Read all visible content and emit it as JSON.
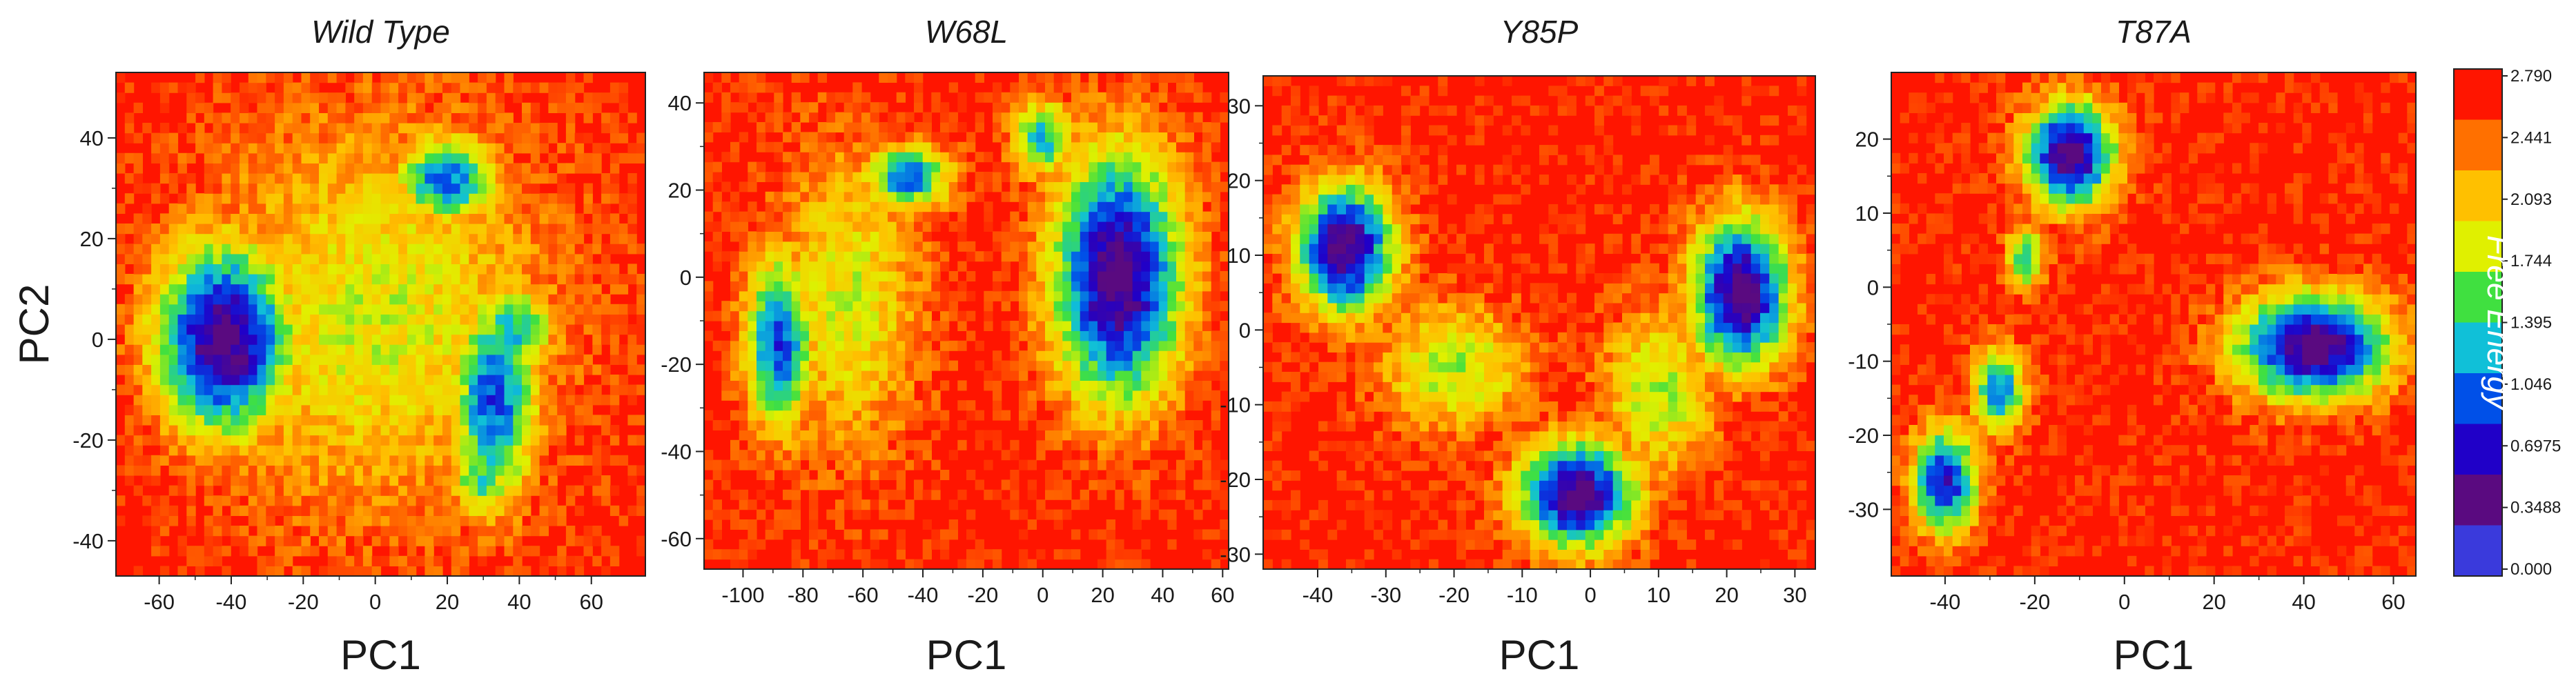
{
  "chart_data": [
    {
      "type": "heatmap",
      "title": "Wild Type",
      "xlabel": "PC1",
      "ylabel": "PC2",
      "xlim": [
        -72,
        75
      ],
      "ylim": [
        -47,
        53
      ],
      "xticks": [
        -60,
        -40,
        -20,
        0,
        20,
        40,
        60
      ],
      "yticks": [
        -40,
        -20,
        0,
        20,
        40
      ],
      "basins": [
        {
          "x": -42,
          "y": 0,
          "sx": 13,
          "sy": 13,
          "depth": 1.0
        },
        {
          "x": 33,
          "y": -12,
          "sx": 8,
          "sy": 14,
          "depth": 0.75
        },
        {
          "x": 20,
          "y": 32,
          "sx": 10,
          "sy": 6,
          "depth": 0.7
        },
        {
          "x": 38,
          "y": 2,
          "sx": 8,
          "sy": 6,
          "depth": 0.6
        },
        {
          "x": 30,
          "y": -28,
          "sx": 6,
          "sy": 5,
          "depth": 0.55
        },
        {
          "x": 0,
          "y": 5,
          "sx": 35,
          "sy": 28,
          "depth": 0.35
        }
      ]
    },
    {
      "type": "heatmap",
      "title": "W68L",
      "xlabel": "PC1",
      "ylabel": "",
      "xlim": [
        -113,
        62
      ],
      "ylim": [
        -67,
        47
      ],
      "xticks": [
        -100,
        -80,
        -60,
        -40,
        -20,
        0,
        20,
        40,
        60
      ],
      "yticks": [
        -60,
        -40,
        -20,
        0,
        20,
        40
      ],
      "basins": [
        {
          "x": 25,
          "y": 0,
          "sx": 15,
          "sy": 20,
          "depth": 1.0
        },
        {
          "x": -88,
          "y": -15,
          "sx": 8,
          "sy": 14,
          "depth": 0.75
        },
        {
          "x": -45,
          "y": 23,
          "sx": 10,
          "sy": 5,
          "depth": 0.7
        },
        {
          "x": 0,
          "y": 32,
          "sx": 7,
          "sy": 6,
          "depth": 0.6
        },
        {
          "x": -65,
          "y": -5,
          "sx": 18,
          "sy": 25,
          "depth": 0.35
        }
      ]
    },
    {
      "type": "heatmap",
      "title": "Y85P",
      "xlabel": "PC1",
      "ylabel": "",
      "xlim": [
        -48,
        33
      ],
      "ylim": [
        -32,
        34
      ],
      "xticks": [
        -40,
        -30,
        -20,
        -10,
        0,
        10,
        20,
        30
      ],
      "yticks": [
        -30,
        -20,
        -10,
        0,
        10,
        20,
        30
      ],
      "basins": [
        {
          "x": -36,
          "y": 11,
          "sx": 5,
          "sy": 6,
          "depth": 1.0
        },
        {
          "x": 22,
          "y": 5,
          "sx": 5,
          "sy": 7,
          "depth": 1.0
        },
        {
          "x": -2,
          "y": -22,
          "sx": 6,
          "sy": 5,
          "depth": 1.0
        },
        {
          "x": -20,
          "y": -5,
          "sx": 8,
          "sy": 6,
          "depth": 0.4
        },
        {
          "x": 10,
          "y": -8,
          "sx": 6,
          "sy": 8,
          "depth": 0.4
        }
      ]
    },
    {
      "type": "heatmap",
      "title": "T87A",
      "xlabel": "PC1",
      "ylabel": "",
      "xlim": [
        -52,
        65
      ],
      "ylim": [
        -39,
        29
      ],
      "xticks": [
        -40,
        -20,
        0,
        20,
        40,
        60
      ],
      "yticks": [
        -30,
        -20,
        -10,
        0,
        10,
        20
      ],
      "basins": [
        {
          "x": -12,
          "y": 18,
          "sx": 7,
          "sy": 5,
          "depth": 1.0
        },
        {
          "x": 42,
          "y": -8,
          "sx": 12,
          "sy": 5,
          "depth": 1.0
        },
        {
          "x": -40,
          "y": -26,
          "sx": 5,
          "sy": 5,
          "depth": 0.85
        },
        {
          "x": -28,
          "y": -14,
          "sx": 4,
          "sy": 4,
          "depth": 0.7
        },
        {
          "x": -22,
          "y": 4,
          "sx": 3,
          "sy": 3,
          "depth": 0.55
        }
      ]
    }
  ],
  "colorbar": {
    "title": "Free Energy",
    "min": 0.0,
    "max": 2.79,
    "labels": [
      "0.000",
      "0.3488",
      "0.6975",
      "1.046",
      "1.395",
      "1.744",
      "2.093",
      "2.441",
      "2.790"
    ],
    "colors": [
      "#3a3adc",
      "#5a0a80",
      "#2000c8",
      "#0050e8",
      "#10c0d8",
      "#40e040",
      "#e0f000",
      "#ffc000",
      "#ff7000",
      "#ff1500"
    ]
  }
}
